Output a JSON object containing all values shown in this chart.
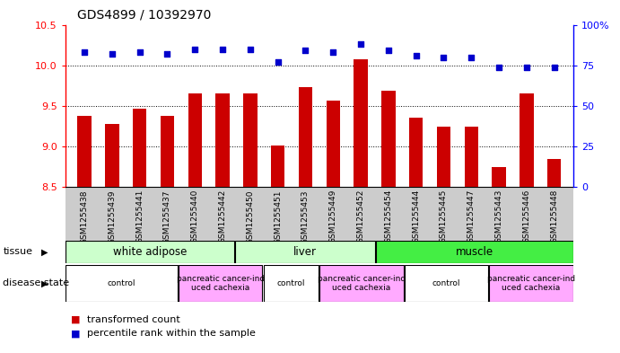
{
  "title": "GDS4899 / 10392970",
  "samples": [
    "GSM1255438",
    "GSM1255439",
    "GSM1255441",
    "GSM1255437",
    "GSM1255440",
    "GSM1255442",
    "GSM1255450",
    "GSM1255451",
    "GSM1255453",
    "GSM1255449",
    "GSM1255452",
    "GSM1255454",
    "GSM1255444",
    "GSM1255445",
    "GSM1255447",
    "GSM1255443",
    "GSM1255446",
    "GSM1255448"
  ],
  "transformed_count": [
    9.38,
    9.28,
    9.47,
    9.38,
    9.65,
    9.65,
    9.65,
    9.01,
    9.73,
    9.57,
    10.07,
    9.69,
    9.35,
    9.24,
    9.24,
    8.75,
    9.65,
    8.85
  ],
  "percentile_rank": [
    83,
    82,
    83,
    82,
    85,
    85,
    85,
    77,
    84,
    83,
    88,
    84,
    81,
    80,
    80,
    74,
    74,
    74
  ],
  "ylim_left": [
    8.5,
    10.5
  ],
  "ylim_right": [
    0,
    100
  ],
  "yticks_left": [
    8.5,
    9.0,
    9.5,
    10.0,
    10.5
  ],
  "yticks_right": [
    0,
    25,
    50,
    75,
    100
  ],
  "bar_color": "#CC0000",
  "dot_color": "#0000CC",
  "bar_bottom": 8.5,
  "grid_lines": [
    9.0,
    9.5,
    10.0
  ],
  "tissue_spans": [
    {
      "start": 0,
      "end": 6,
      "label": "white adipose",
      "color": "#ccffcc"
    },
    {
      "start": 6,
      "end": 11,
      "label": "liver",
      "color": "#ccffcc"
    },
    {
      "start": 11,
      "end": 18,
      "label": "muscle",
      "color": "#44ee44"
    }
  ],
  "disease_spans": [
    {
      "start": 0,
      "end": 4,
      "label": "control",
      "color": "#ffffff"
    },
    {
      "start": 4,
      "end": 7,
      "label": "pancreatic cancer-ind\nuced cachexia",
      "color": "#ffaaff"
    },
    {
      "start": 7,
      "end": 9,
      "label": "control",
      "color": "#ffffff"
    },
    {
      "start": 9,
      "end": 12,
      "label": "pancreatic cancer-ind\nuced cachexia",
      "color": "#ffaaff"
    },
    {
      "start": 12,
      "end": 15,
      "label": "control",
      "color": "#ffffff"
    },
    {
      "start": 15,
      "end": 18,
      "label": "pancreatic cancer-ind\nuced cachexia",
      "color": "#ffaaff"
    }
  ],
  "tissue_label": "tissue",
  "disease_label": "disease state",
  "legend1_color": "#CC0000",
  "legend1_text": "transformed count",
  "legend2_color": "#0000CC",
  "legend2_text": "percentile rank within the sample",
  "xticklabel_fontsize": 6.5,
  "title_fontsize": 10,
  "xtick_bg_color": "#cccccc"
}
